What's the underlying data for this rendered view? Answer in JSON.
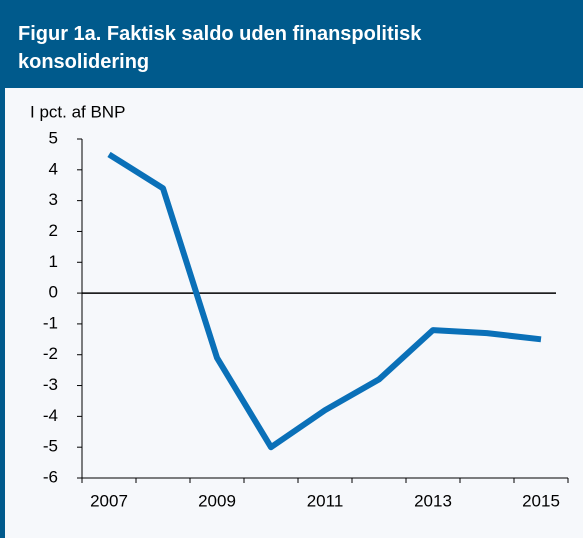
{
  "chart_data": {
    "type": "line",
    "title": "Figur 1a. Faktisk saldo uden finanspolitisk konsolidering",
    "y_axis_label": "I pct. af BNP",
    "categories": [
      "2007",
      null,
      "2009",
      null,
      "2011",
      null,
      "2013",
      null,
      "2015"
    ],
    "series": [
      {
        "name": "Faktisk saldo",
        "color": "#0a70b8",
        "values": [
          4.5,
          3.4,
          -2.1,
          -5.0,
          -3.8,
          -2.8,
          -1.2,
          -1.3,
          -1.5
        ]
      }
    ],
    "ylim": [
      -6,
      5
    ],
    "yticks": [
      -6,
      -5,
      -4,
      -3,
      -2,
      -1,
      0,
      1,
      2,
      3,
      4,
      5
    ]
  }
}
